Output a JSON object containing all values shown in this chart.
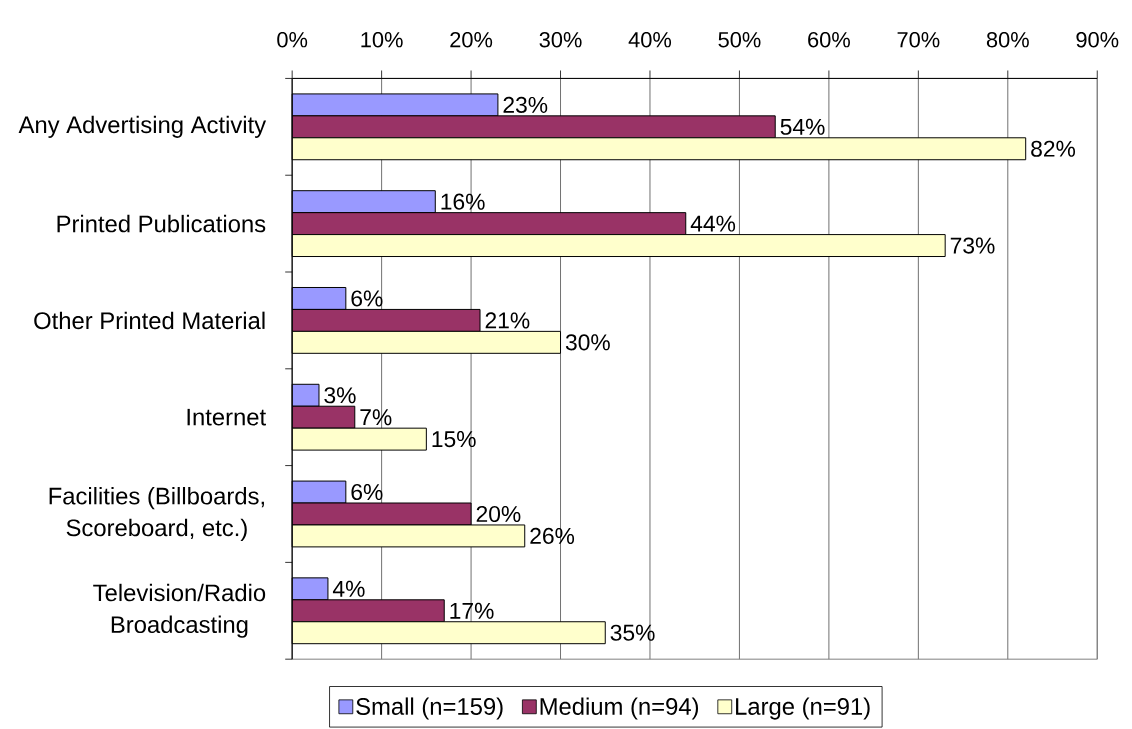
{
  "chart_data": {
    "type": "bar",
    "orientation": "horizontal",
    "categories": [
      "Any Advertising Activity",
      "Printed Publications",
      "Other Printed Material",
      "Internet",
      "Facilities (Billboards, Scoreboard, etc.)",
      "Television/Radio Broadcasting"
    ],
    "series": [
      {
        "name": "Small (n=159)",
        "color": "#9999ff",
        "values": [
          23,
          16,
          6,
          3,
          6,
          4
        ],
        "value_labels": [
          "23%",
          "16%",
          "6%",
          "3%",
          "6%",
          "4%"
        ]
      },
      {
        "name": "Medium (n=94)",
        "color": "#993366",
        "values": [
          54,
          44,
          21,
          7,
          20,
          17
        ],
        "value_labels": [
          "54%",
          "44%",
          "21%",
          "7%",
          "20%",
          "17%"
        ]
      },
      {
        "name": "Large (n=91)",
        "color": "#ffffcc",
        "values": [
          82,
          73,
          30,
          15,
          26,
          35
        ],
        "value_labels": [
          "82%",
          "73%",
          "30%",
          "15%",
          "26%",
          "35%"
        ]
      }
    ],
    "xlim": [
      0,
      90
    ],
    "xticks": [
      {
        "value": 0,
        "label": "0%"
      },
      {
        "value": 10,
        "label": "10%"
      },
      {
        "value": 20,
        "label": "20%"
      },
      {
        "value": 30,
        "label": "30%"
      },
      {
        "value": 40,
        "label": "40%"
      },
      {
        "value": 50,
        "label": "50%"
      },
      {
        "value": 60,
        "label": "60%"
      },
      {
        "value": 70,
        "label": "70%"
      },
      {
        "value": 80,
        "label": "80%"
      },
      {
        "value": 90,
        "label": "90%"
      }
    ],
    "grid": "x",
    "legend": "bottom"
  }
}
